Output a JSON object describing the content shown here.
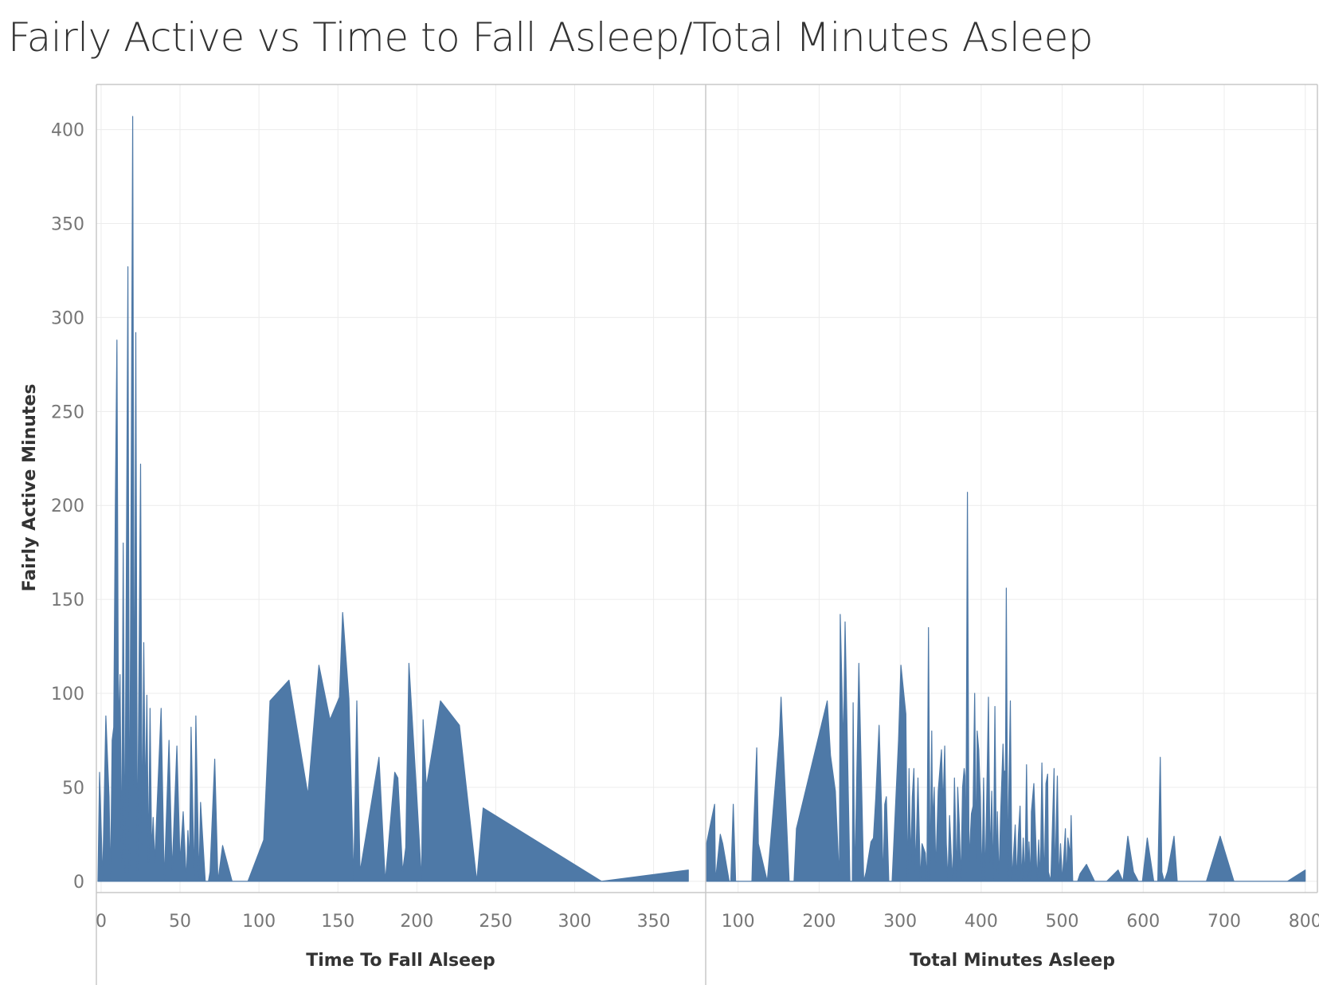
{
  "title": "Fairly Active vs Time to Fall Asleep/Total Minutes Asleep",
  "colors": {
    "area": "#4e79a7",
    "grid": "#ececec",
    "axis": "#c8c8c8",
    "tick": "#767676",
    "text": "#333333"
  },
  "chart_data": [
    {
      "type": "area",
      "ylabel": "Fairly Active Minutes",
      "xlabel": "Time To Fall Alseep",
      "xlim": [
        -3,
        383
      ],
      "ylim": [
        -6,
        424
      ],
      "xticks": [
        0,
        50,
        100,
        150,
        200,
        250,
        300,
        350
      ],
      "yticks": [
        0,
        50,
        100,
        150,
        200,
        250,
        300,
        350,
        400
      ],
      "grid": true,
      "points": [
        [
          -2,
          0
        ],
        [
          -1,
          58
        ],
        [
          0,
          30
        ],
        [
          1,
          0
        ],
        [
          3,
          88
        ],
        [
          5,
          45
        ],
        [
          6,
          0
        ],
        [
          7,
          75
        ],
        [
          8,
          82
        ],
        [
          9,
          200
        ],
        [
          10,
          288
        ],
        [
          11,
          80
        ],
        [
          12,
          110
        ],
        [
          13,
          10
        ],
        [
          14,
          180
        ],
        [
          15,
          5
        ],
        [
          17,
          327
        ],
        [
          18,
          0
        ],
        [
          20,
          407
        ],
        [
          21,
          50
        ],
        [
          22,
          292
        ],
        [
          23,
          5
        ],
        [
          25,
          222
        ],
        [
          26,
          20
        ],
        [
          27,
          127
        ],
        [
          28,
          40
        ],
        [
          29,
          99
        ],
        [
          30,
          10
        ],
        [
          31,
          92
        ],
        [
          32,
          15
        ],
        [
          33,
          34
        ],
        [
          34,
          10
        ],
        [
          38,
          92
        ],
        [
          40,
          0
        ],
        [
          43,
          75
        ],
        [
          45,
          5
        ],
        [
          48,
          72
        ],
        [
          50,
          10
        ],
        [
          52,
          37
        ],
        [
          54,
          0
        ],
        [
          55,
          27
        ],
        [
          56,
          10
        ],
        [
          57,
          82
        ],
        [
          59,
          0
        ],
        [
          60,
          88
        ],
        [
          62,
          0
        ],
        [
          63,
          42
        ],
        [
          66,
          0
        ],
        [
          68,
          0
        ],
        [
          69,
          5
        ],
        [
          72,
          65
        ],
        [
          74,
          0
        ],
        [
          77,
          19
        ],
        [
          83,
          0
        ],
        [
          93,
          0
        ],
        [
          103,
          22
        ],
        [
          107,
          96
        ],
        [
          119,
          107
        ],
        [
          131,
          46
        ],
        [
          138,
          115
        ],
        [
          145,
          86
        ],
        [
          151,
          98
        ],
        [
          153,
          143
        ],
        [
          157,
          97
        ],
        [
          160,
          0
        ],
        [
          162,
          96
        ],
        [
          164,
          5
        ],
        [
          176,
          66
        ],
        [
          180,
          0
        ],
        [
          186,
          58
        ],
        [
          188,
          55
        ],
        [
          191,
          5
        ],
        [
          193,
          18
        ],
        [
          195,
          116
        ],
        [
          200,
          45
        ],
        [
          203,
          0
        ],
        [
          204,
          86
        ],
        [
          206,
          50
        ],
        [
          215,
          96
        ],
        [
          227,
          83
        ],
        [
          238,
          0
        ],
        [
          242,
          39
        ],
        [
          317,
          0
        ],
        [
          372,
          6
        ]
      ]
    },
    {
      "type": "area",
      "ylabel": "Fairly Active Minutes",
      "xlabel": "Total Minutes Asleep",
      "xlim": [
        60,
        815
      ],
      "ylim": [
        -6,
        424
      ],
      "xticks": [
        100,
        200,
        300,
        400,
        500,
        600,
        700,
        800
      ],
      "yticks": [
        0,
        50,
        100,
        150,
        200,
        250,
        300,
        350,
        400
      ],
      "grid": true,
      "points": [
        [
          61,
          0
        ],
        [
          61,
          20
        ],
        [
          71,
          41
        ],
        [
          72,
          0
        ],
        [
          78,
          25
        ],
        [
          81,
          20
        ],
        [
          89,
          0
        ],
        [
          91,
          0
        ],
        [
          94,
          41
        ],
        [
          97,
          0
        ],
        [
          117,
          0
        ],
        [
          118,
          15
        ],
        [
          123,
          71
        ],
        [
          125,
          20
        ],
        [
          136,
          0
        ],
        [
          151,
          78
        ],
        [
          153,
          98
        ],
        [
          163,
          0
        ],
        [
          169,
          0
        ],
        [
          172,
          28
        ],
        [
          210,
          96
        ],
        [
          214,
          67
        ],
        [
          220,
          48
        ],
        [
          225,
          0
        ],
        [
          226,
          142
        ],
        [
          230,
          70
        ],
        [
          232,
          138
        ],
        [
          238,
          0
        ],
        [
          241,
          0
        ],
        [
          242,
          95
        ],
        [
          244,
          0
        ],
        [
          249,
          116
        ],
        [
          255,
          0
        ],
        [
          258,
          5
        ],
        [
          264,
          21
        ],
        [
          267,
          23
        ],
        [
          270,
          45
        ],
        [
          274,
          83
        ],
        [
          277,
          40
        ],
        [
          279,
          0
        ],
        [
          281,
          41
        ],
        [
          283,
          45
        ],
        [
          286,
          0
        ],
        [
          290,
          0
        ],
        [
          298,
          75
        ],
        [
          301,
          115
        ],
        [
          307,
          89
        ],
        [
          309,
          0
        ],
        [
          311,
          60
        ],
        [
          313,
          10
        ],
        [
          315,
          45
        ],
        [
          317,
          60
        ],
        [
          319,
          5
        ],
        [
          322,
          55
        ],
        [
          325,
          0
        ],
        [
          327,
          20
        ],
        [
          331,
          15
        ],
        [
          333,
          0
        ],
        [
          335,
          135
        ],
        [
          337,
          0
        ],
        [
          339,
          80
        ],
        [
          340,
          30
        ],
        [
          342,
          50
        ],
        [
          344,
          5
        ],
        [
          347,
          48
        ],
        [
          351,
          70
        ],
        [
          353,
          40
        ],
        [
          355,
          72
        ],
        [
          357,
          20
        ],
        [
          359,
          0
        ],
        [
          361,
          35
        ],
        [
          363,
          15
        ],
        [
          365,
          0
        ],
        [
          367,
          55
        ],
        [
          370,
          0
        ],
        [
          371,
          50
        ],
        [
          373,
          30
        ],
        [
          375,
          0
        ],
        [
          377,
          50
        ],
        [
          379,
          60
        ],
        [
          380,
          56
        ],
        [
          381,
          0
        ],
        [
          383,
          207
        ],
        [
          385,
          10
        ],
        [
          388,
          36
        ],
        [
          390,
          40
        ],
        [
          392,
          100
        ],
        [
          394,
          10
        ],
        [
          395,
          80
        ],
        [
          397,
          70
        ],
        [
          399,
          45
        ],
        [
          401,
          0
        ],
        [
          403,
          55
        ],
        [
          405,
          0
        ],
        [
          407,
          48
        ],
        [
          409,
          98
        ],
        [
          411,
          10
        ],
        [
          413,
          48
        ],
        [
          415,
          0
        ],
        [
          417,
          93
        ],
        [
          419,
          0
        ],
        [
          420,
          37
        ],
        [
          422,
          0
        ],
        [
          424,
          36
        ],
        [
          427,
          73
        ],
        [
          428,
          58
        ],
        [
          430,
          59
        ],
        [
          431,
          156
        ],
        [
          433,
          0
        ],
        [
          434,
          42
        ],
        [
          436,
          96
        ],
        [
          438,
          0
        ],
        [
          442,
          30
        ],
        [
          444,
          0
        ],
        [
          446,
          25
        ],
        [
          448,
          40
        ],
        [
          450,
          0
        ],
        [
          452,
          23
        ],
        [
          454,
          0
        ],
        [
          456,
          62
        ],
        [
          458,
          0
        ],
        [
          459,
          21
        ],
        [
          461,
          0
        ],
        [
          462,
          37
        ],
        [
          465,
          52
        ],
        [
          467,
          27
        ],
        [
          469,
          0
        ],
        [
          471,
          22
        ],
        [
          473,
          0
        ],
        [
          475,
          63
        ],
        [
          477,
          17
        ],
        [
          478,
          0
        ],
        [
          480,
          52
        ],
        [
          482,
          57
        ],
        [
          483,
          5
        ],
        [
          486,
          0
        ],
        [
          490,
          60
        ],
        [
          491,
          0
        ],
        [
          494,
          56
        ],
        [
          496,
          0
        ],
        [
          498,
          20
        ],
        [
          500,
          0
        ],
        [
          502,
          13
        ],
        [
          504,
          28
        ],
        [
          505,
          0
        ],
        [
          507,
          23
        ],
        [
          510,
          14
        ],
        [
          511,
          35
        ],
        [
          513,
          0
        ],
        [
          515,
          0
        ],
        [
          519,
          0
        ],
        [
          522,
          4
        ],
        [
          530,
          9
        ],
        [
          540,
          0
        ],
        [
          555,
          0
        ],
        [
          569,
          6
        ],
        [
          575,
          0
        ],
        [
          581,
          24
        ],
        [
          588,
          5
        ],
        [
          594,
          0
        ],
        [
          599,
          0
        ],
        [
          605,
          23
        ],
        [
          613,
          0
        ],
        [
          618,
          0
        ],
        [
          621,
          66
        ],
        [
          623,
          5
        ],
        [
          626,
          0
        ],
        [
          630,
          5
        ],
        [
          638,
          24
        ],
        [
          642,
          0
        ],
        [
          678,
          0
        ],
        [
          695,
          24
        ],
        [
          712,
          0
        ],
        [
          778,
          0
        ],
        [
          800,
          6
        ]
      ]
    }
  ]
}
